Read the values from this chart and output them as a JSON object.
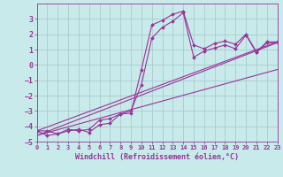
{
  "title": "",
  "xlabel": "Windchill (Refroidissement éolien,°C)",
  "ylabel": "",
  "bg_color": "#c8eaea",
  "line_color": "#993399",
  "grid_color": "#aacccc",
  "xlim": [
    0,
    23
  ],
  "ylim": [
    -5,
    4
  ],
  "yticks": [
    -5,
    -4,
    -3,
    -2,
    -1,
    0,
    1,
    2,
    3
  ],
  "xticks": [
    0,
    1,
    2,
    3,
    4,
    5,
    6,
    7,
    8,
    9,
    10,
    11,
    12,
    13,
    14,
    15,
    16,
    17,
    18,
    19,
    20,
    21,
    22,
    23
  ],
  "series1_x": [
    0,
    1,
    2,
    3,
    4,
    5,
    6,
    7,
    8,
    9,
    10,
    11,
    12,
    13,
    14,
    15,
    16,
    17,
    18,
    19,
    20,
    21,
    22,
    23
  ],
  "series1_y": [
    -4.3,
    -4.3,
    -4.5,
    -4.3,
    -4.2,
    -4.4,
    -3.9,
    -3.8,
    -3.2,
    -3.15,
    -0.3,
    2.6,
    2.9,
    3.3,
    3.5,
    1.3,
    1.05,
    1.4,
    1.55,
    1.35,
    2.0,
    0.85,
    1.5,
    1.5
  ],
  "series2_x": [
    0,
    1,
    2,
    3,
    4,
    5,
    6,
    7,
    8,
    9,
    10,
    11,
    12,
    13,
    14,
    15,
    16,
    17,
    18,
    19,
    20,
    21,
    22,
    23
  ],
  "series2_y": [
    -4.3,
    -4.6,
    -4.5,
    -4.2,
    -4.3,
    -4.2,
    -3.6,
    -3.5,
    -3.2,
    -3.0,
    -1.3,
    1.75,
    2.45,
    2.85,
    3.4,
    0.5,
    0.9,
    1.1,
    1.3,
    1.05,
    1.95,
    0.8,
    1.45,
    1.45
  ],
  "line1_x": [
    0,
    23
  ],
  "line1_y": [
    -4.3,
    1.5
  ],
  "line2_x": [
    0,
    23
  ],
  "line2_y": [
    -4.6,
    1.45
  ],
  "line3_x": [
    0,
    23
  ],
  "line3_y": [
    -4.6,
    -0.3
  ]
}
